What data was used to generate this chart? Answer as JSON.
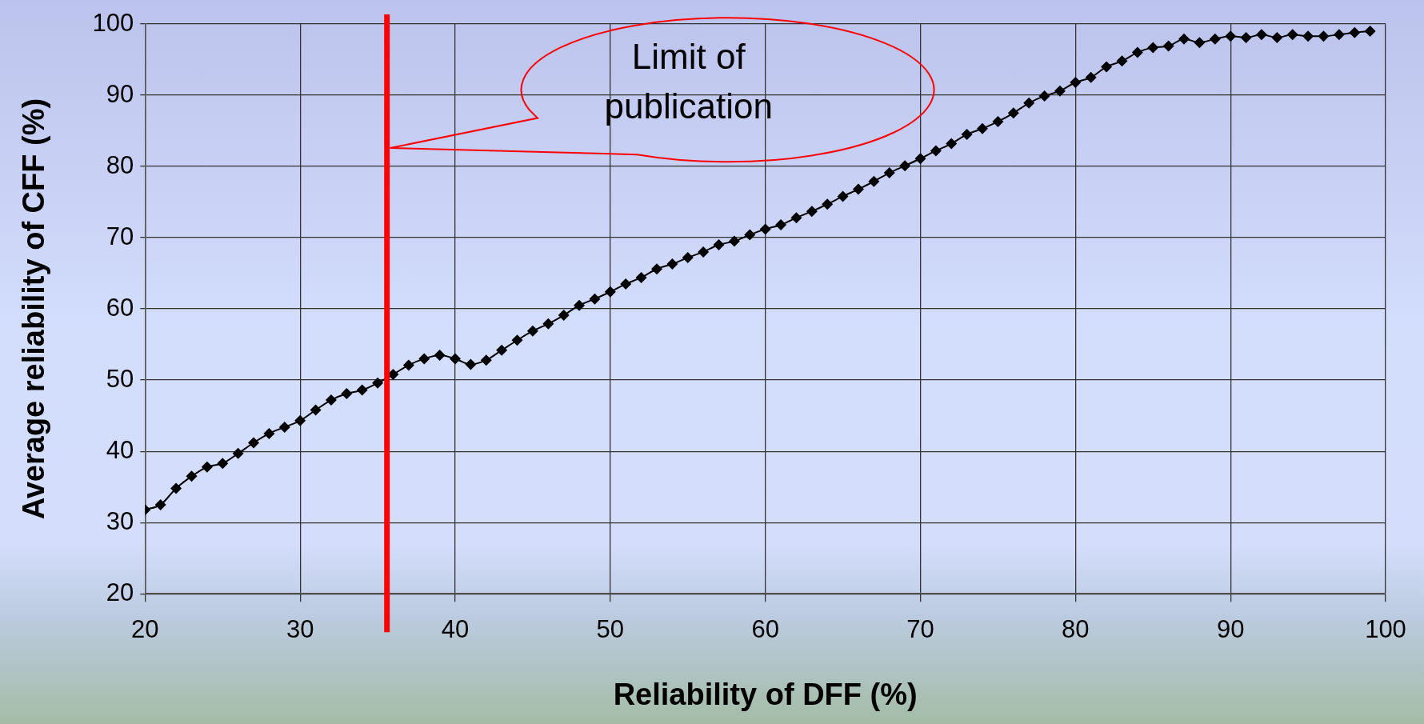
{
  "chart_data": {
    "type": "line",
    "xlabel": "Reliability of DFF (%)",
    "ylabel": "Average reliability of CFF (%)",
    "x": [
      20,
      21,
      22,
      23,
      24,
      25,
      26,
      27,
      28,
      29,
      30,
      31,
      32,
      33,
      34,
      35,
      36,
      37,
      38,
      39,
      40,
      41,
      42,
      43,
      44,
      45,
      46,
      47,
      48,
      49,
      50,
      51,
      52,
      53,
      54,
      55,
      56,
      57,
      58,
      59,
      60,
      61,
      62,
      63,
      64,
      65,
      66,
      67,
      68,
      69,
      70,
      71,
      72,
      73,
      74,
      75,
      76,
      77,
      78,
      79,
      80,
      81,
      82,
      83,
      84,
      85,
      86,
      87,
      88,
      89,
      90,
      91,
      92,
      93,
      94,
      95,
      96,
      97,
      98,
      99
    ],
    "series": [
      {
        "color": "#000000",
        "values": [
          31.8,
          32.5,
          34.8,
          36.5,
          37.8,
          38.3,
          39.7,
          41.2,
          42.5,
          43.4,
          44.3,
          45.8,
          47.2,
          48.1,
          48.6,
          49.6,
          50.8,
          52.1,
          53.0,
          53.5,
          53.0,
          52.2,
          52.8,
          54.2,
          55.6,
          56.9,
          57.9,
          59.1,
          60.5,
          61.4,
          62.4,
          63.5,
          64.4,
          65.6,
          66.3,
          67.2,
          68.0,
          69.0,
          69.5,
          70.4,
          71.2,
          71.8,
          72.8,
          73.7,
          74.7,
          75.8,
          76.8,
          77.9,
          79.1,
          80.1,
          81.1,
          82.2,
          83.2,
          84.5,
          85.3,
          86.3,
          87.5,
          88.9,
          89.9,
          90.6,
          91.8,
          92.5,
          94.0,
          94.8,
          96.0,
          96.7,
          96.9,
          97.9,
          97.4,
          97.9,
          98.3,
          98.1,
          98.5,
          98.1,
          98.5,
          98.3,
          98.3,
          98.5,
          98.8,
          99.0
        ]
      }
    ],
    "xlim": [
      20,
      100
    ],
    "xticks": [
      20,
      30,
      40,
      50,
      60,
      70,
      80,
      90,
      100
    ],
    "ylim": [
      20,
      100
    ],
    "yticks": [
      20,
      30,
      40,
      50,
      60,
      70,
      80,
      90,
      100
    ],
    "ref_lines": [
      {
        "axis": "x",
        "value": 35.6,
        "color": "#ff0000"
      }
    ],
    "annotations": [
      "Limit of publication"
    ],
    "grid": true,
    "legend": false,
    "marker": "diamond",
    "line_style": "solid"
  }
}
